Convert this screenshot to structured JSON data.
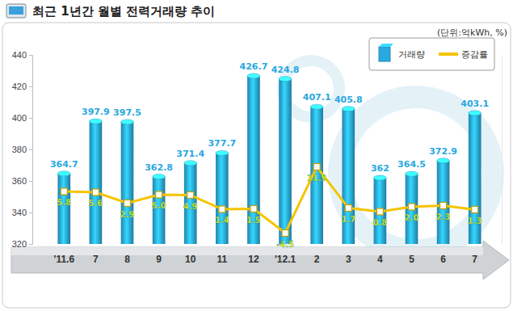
{
  "chart_data": {
    "type": "bar",
    "title": "최근 1년간 월별 전력거래량 추이",
    "subtitle": "(단위:억kWh, %)",
    "categories": [
      "'11.6",
      "7",
      "8",
      "9",
      "10",
      "11",
      "12",
      "'12.1",
      "2",
      "3",
      "4",
      "5",
      "6",
      "7"
    ],
    "series": [
      {
        "name": "거래량",
        "type": "bar",
        "color": "#29a8e0",
        "values": [
          364.7,
          397.9,
          397.5,
          362.8,
          371.4,
          377.7,
          426.7,
          424.8,
          407.1,
          405.8,
          362,
          364.5,
          372.9,
          403.1
        ]
      },
      {
        "name": "증감률",
        "type": "line",
        "color": "#f5c400",
        "marker": "square",
        "axis": "y2",
        "values": [
          5.8,
          5.6,
          2.9,
          5.0,
          4.9,
          1.4,
          1.5,
          -4.5,
          11.9,
          1.7,
          0.8,
          2.0,
          2.3,
          1.3
        ],
        "value_labels": [
          "5.8",
          "5.6",
          "2.9",
          "5.0",
          "4.9",
          "1.4",
          "1.5",
          "-4.5",
          "11.9",
          "1.7",
          "0.8",
          "2.0",
          "2.3",
          "1.3"
        ]
      }
    ],
    "ylim": [
      320,
      440
    ],
    "yticks": [
      320,
      340,
      360,
      380,
      400,
      420,
      440
    ],
    "y2lim": [
      -7.2,
      39.6
    ],
    "legend": "top-right",
    "data_labels": true,
    "grid": false
  }
}
